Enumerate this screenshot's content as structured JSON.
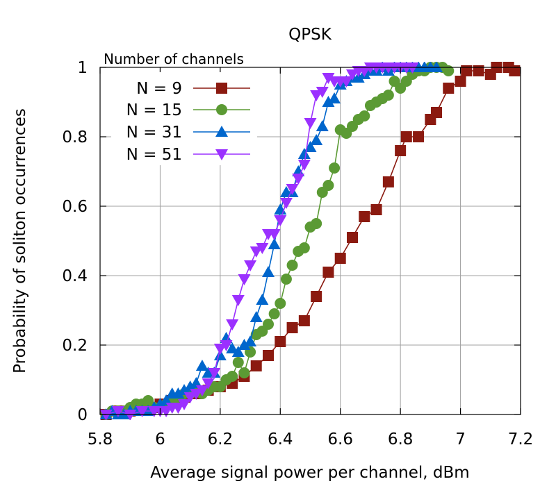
{
  "chart_data": {
    "type": "line",
    "title": "QPSK",
    "xlabel": "Average signal power per channel, dBm",
    "ylabel": "Probability of soliton occurrences",
    "xlim": [
      5.8,
      7.2
    ],
    "ylim": [
      0,
      1
    ],
    "xticks": [
      5.8,
      6,
      6.2,
      6.4,
      6.6,
      6.8,
      7,
      7.2
    ],
    "xtick_labels": [
      "5.8",
      "6",
      "6.2",
      "6.4",
      "6.6",
      "6.8",
      "7",
      "7.2"
    ],
    "yticks": [
      0,
      0.2,
      0.4,
      0.6,
      0.8,
      1
    ],
    "ytick_labels": [
      "0",
      "0.2",
      "0.4",
      "0.6",
      "0.8",
      "1"
    ],
    "grid": true,
    "legend": {
      "title": "Number of channels",
      "position": "top-left"
    },
    "series": [
      {
        "name": "N = 9",
        "color": "#8b1a10",
        "marker": "square",
        "x": [
          5.82,
          5.86,
          5.9,
          5.94,
          5.98,
          6.0,
          6.04,
          6.08,
          6.12,
          6.16,
          6.2,
          6.24,
          6.28,
          6.32,
          6.36,
          6.4,
          6.44,
          6.48,
          6.52,
          6.56,
          6.6,
          6.64,
          6.68,
          6.72,
          6.76,
          6.8,
          6.82,
          6.86,
          6.9,
          6.92,
          6.96,
          7.0,
          7.02,
          7.06,
          7.1,
          7.12,
          7.16,
          7.18
        ],
        "y": [
          0.0,
          0.01,
          0.01,
          0.02,
          0.02,
          0.03,
          0.04,
          0.05,
          0.06,
          0.07,
          0.08,
          0.09,
          0.11,
          0.14,
          0.17,
          0.21,
          0.25,
          0.27,
          0.34,
          0.41,
          0.45,
          0.51,
          0.57,
          0.59,
          0.67,
          0.76,
          0.8,
          0.8,
          0.85,
          0.87,
          0.94,
          0.96,
          0.99,
          0.99,
          0.98,
          1.0,
          1.0,
          0.99
        ]
      },
      {
        "name": "N = 15",
        "color": "#5b9a34",
        "marker": "circle",
        "x": [
          5.82,
          5.84,
          5.86,
          5.88,
          5.9,
          5.92,
          5.94,
          5.96,
          5.98,
          6.0,
          6.02,
          6.04,
          6.06,
          6.08,
          6.1,
          6.12,
          6.14,
          6.16,
          6.18,
          6.2,
          6.22,
          6.24,
          6.26,
          6.28,
          6.3,
          6.32,
          6.34,
          6.36,
          6.38,
          6.4,
          6.42,
          6.44,
          6.46,
          6.48,
          6.5,
          6.52,
          6.54,
          6.56,
          6.58,
          6.6,
          6.62,
          6.64,
          6.66,
          6.68,
          6.7,
          6.72,
          6.74,
          6.76,
          6.78,
          6.8,
          6.82,
          6.84,
          6.86,
          6.88,
          6.9,
          6.92,
          6.94,
          6.96
        ],
        "y": [
          0.0,
          0.01,
          0.01,
          0.01,
          0.02,
          0.03,
          0.03,
          0.04,
          0.02,
          0.02,
          0.03,
          0.04,
          0.05,
          0.06,
          0.06,
          0.07,
          0.06,
          0.07,
          0.08,
          0.08,
          0.1,
          0.11,
          0.15,
          0.12,
          0.18,
          0.23,
          0.24,
          0.26,
          0.29,
          0.32,
          0.39,
          0.43,
          0.47,
          0.48,
          0.54,
          0.55,
          0.64,
          0.66,
          0.71,
          0.82,
          0.81,
          0.83,
          0.85,
          0.86,
          0.89,
          0.9,
          0.91,
          0.92,
          0.96,
          0.94,
          0.96,
          0.98,
          0.99,
          0.99,
          1.0,
          1.0,
          1.0,
          0.99
        ]
      },
      {
        "name": "N = 31",
        "color": "#0066cc",
        "marker": "triangle-up",
        "x": [
          5.82,
          5.84,
          5.86,
          5.88,
          5.9,
          5.92,
          5.94,
          5.96,
          5.98,
          6.0,
          6.02,
          6.04,
          6.06,
          6.08,
          6.1,
          6.12,
          6.14,
          6.16,
          6.18,
          6.2,
          6.22,
          6.24,
          6.26,
          6.28,
          6.3,
          6.32,
          6.34,
          6.36,
          6.38,
          6.4,
          6.42,
          6.44,
          6.46,
          6.48,
          6.5,
          6.52,
          6.54,
          6.56,
          6.58,
          6.6,
          6.62,
          6.64,
          6.66,
          6.68,
          6.7,
          6.72,
          6.74,
          6.76,
          6.78,
          6.8,
          6.82,
          6.84,
          6.86,
          6.88,
          6.9,
          6.92
        ],
        "y": [
          0.0,
          0.01,
          0.0,
          0.0,
          0.01,
          0.01,
          0.01,
          0.01,
          0.02,
          0.03,
          0.04,
          0.06,
          0.06,
          0.07,
          0.08,
          0.09,
          0.14,
          0.12,
          0.12,
          0.17,
          0.22,
          0.19,
          0.18,
          0.2,
          0.21,
          0.28,
          0.33,
          0.41,
          0.49,
          0.59,
          0.64,
          0.64,
          0.7,
          0.75,
          0.77,
          0.79,
          0.83,
          0.9,
          0.91,
          0.95,
          0.96,
          0.97,
          0.97,
          0.98,
          0.99,
          0.99,
          1.0,
          0.99,
          1.0,
          1.0,
          1.0,
          1.0,
          1.0,
          1.0,
          1.0,
          1.0
        ]
      },
      {
        "name": "N = 51",
        "color": "#9b30ff",
        "marker": "triangle-down",
        "x": [
          5.82,
          5.86,
          5.9,
          5.94,
          5.98,
          6.0,
          6.02,
          6.04,
          6.06,
          6.08,
          6.1,
          6.12,
          6.14,
          6.16,
          6.18,
          6.2,
          6.22,
          6.24,
          6.26,
          6.28,
          6.3,
          6.32,
          6.34,
          6.36,
          6.38,
          6.4,
          6.42,
          6.44,
          6.46,
          6.48,
          6.5,
          6.52,
          6.54,
          6.56,
          6.58,
          6.6,
          6.62,
          6.64,
          6.66,
          6.68,
          6.7,
          6.72,
          6.74,
          6.76,
          6.78,
          6.8,
          6.82,
          6.84
        ],
        "y": [
          0.0,
          0.01,
          0.0,
          0.01,
          0.01,
          0.01,
          0.01,
          0.02,
          0.02,
          0.03,
          0.05,
          0.06,
          0.07,
          0.09,
          0.12,
          0.19,
          0.2,
          0.26,
          0.33,
          0.39,
          0.43,
          0.47,
          0.48,
          0.52,
          0.52,
          0.56,
          0.61,
          0.65,
          0.68,
          0.72,
          0.84,
          0.92,
          0.93,
          0.97,
          0.96,
          0.96,
          0.96,
          0.98,
          0.99,
          0.99,
          1.0,
          1.0,
          1.0,
          1.0,
          1.0,
          1.0,
          1.0,
          1.0
        ]
      }
    ]
  }
}
